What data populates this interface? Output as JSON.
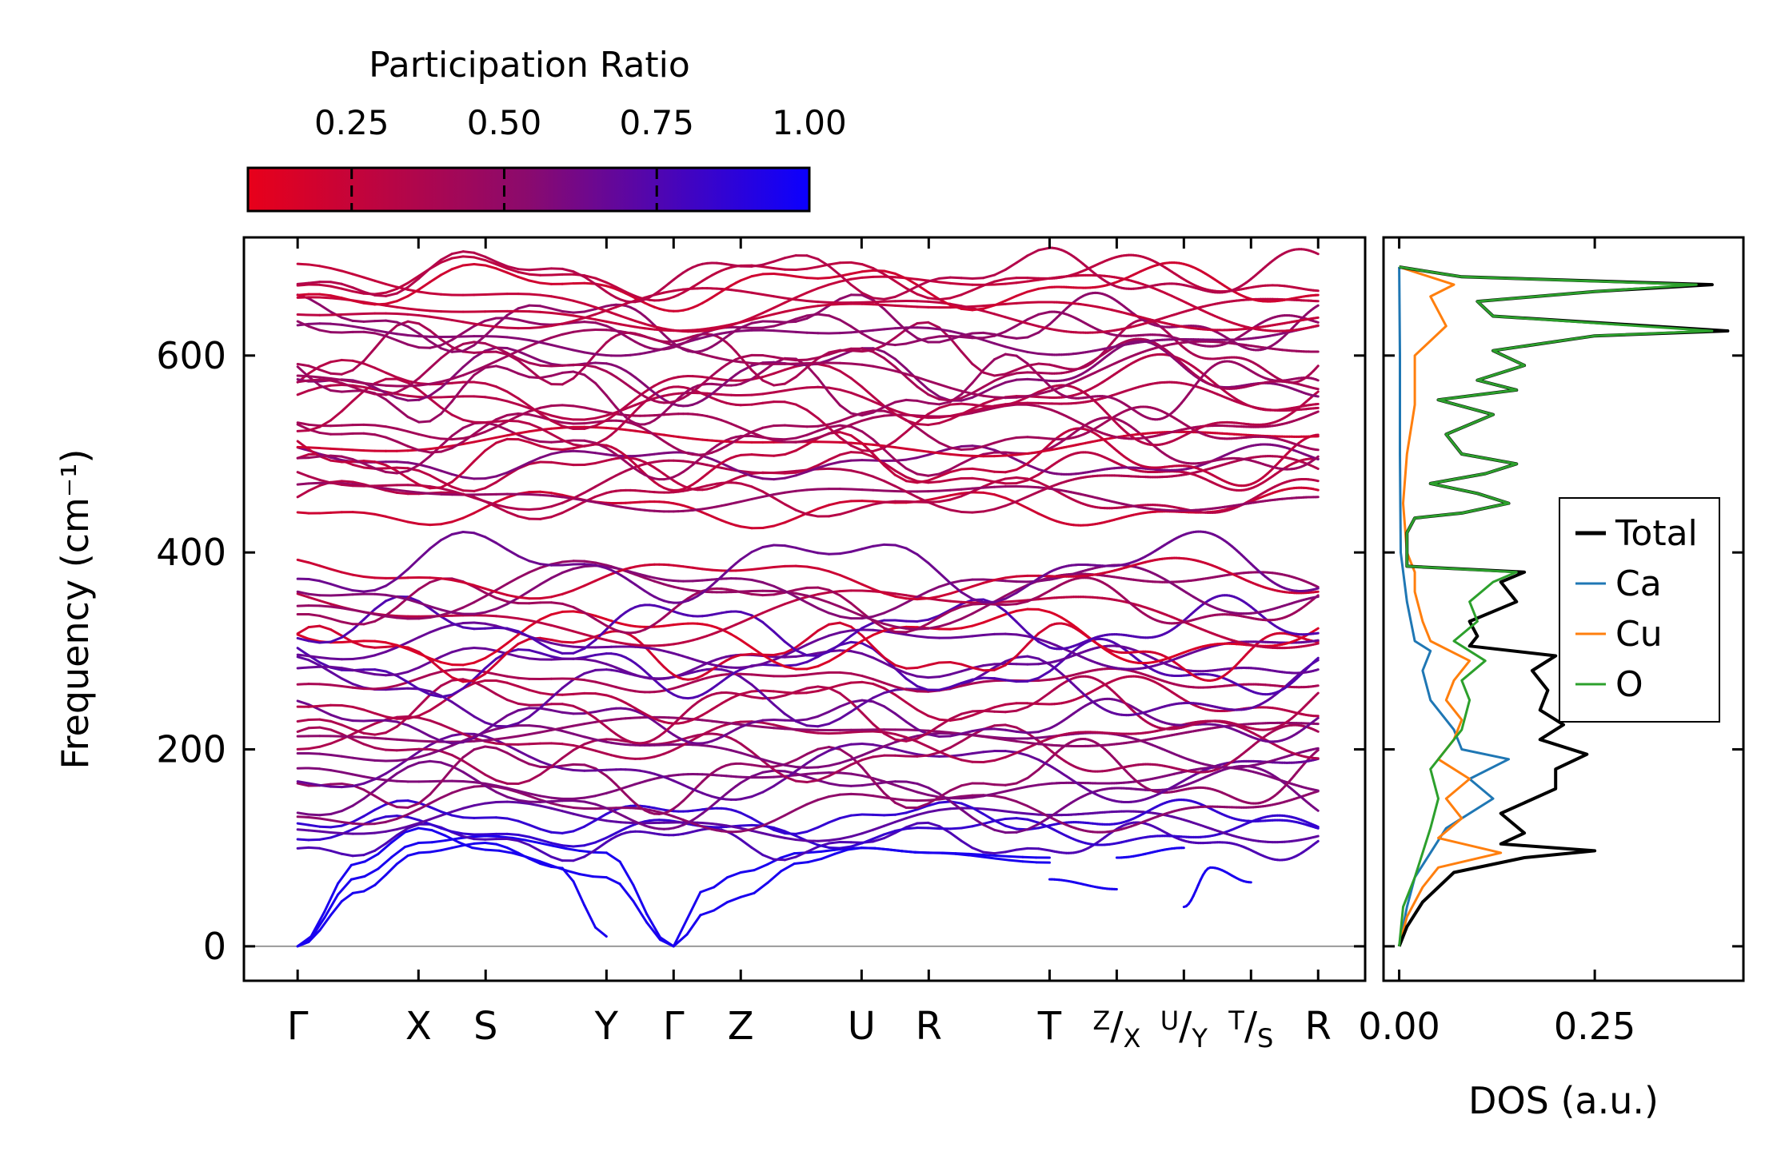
{
  "colorbar": {
    "title": "Participation Ratio",
    "ticks": [
      0.25,
      0.5,
      0.75,
      1.0
    ],
    "tick_labels": [
      "0.25",
      "0.50",
      "0.75",
      "1.00"
    ],
    "range": [
      0.08,
      1.0
    ],
    "color_low": "#e8001a",
    "color_mid": "#8a0a6e",
    "color_high": "#0b00ff"
  },
  "chart_data": [
    {
      "type": "line",
      "name": "phonon-dispersion",
      "ylabel": "Frequency (cm⁻¹)",
      "ylim": [
        -35,
        720
      ],
      "yticks": [
        0,
        200,
        400,
        600
      ],
      "ytick_labels": [
        "0",
        "200",
        "400",
        "600"
      ],
      "xlim": [
        -0.8,
        15.9
      ],
      "kpath": {
        "points": [
          0,
          1.8,
          2.8,
          4.6,
          5.6,
          6.6,
          8.4,
          9.4,
          11.2,
          12.2,
          13.2,
          14.2,
          15.2
        ],
        "labels": [
          "Γ",
          "X",
          "S",
          "Y",
          "Γ",
          "Z",
          "U",
          "R",
          "T",
          "Z/X",
          "U/Y",
          "T/S",
          "R"
        ],
        "segments": [
          [
            0,
            4.6
          ],
          [
            4.6,
            6.6
          ],
          [
            6.6,
            11.2
          ],
          [
            11.2,
            12.2
          ],
          [
            12.2,
            13.2
          ],
          [
            13.2,
            14.2
          ],
          [
            14.2,
            15.2
          ]
        ]
      },
      "zero_line": 0,
      "band_groups": {
        "acoustic": [
          {
            "x": [
              0,
              0.9,
              1.8,
              2.8,
              3.9,
              4.6
            ],
            "y": [
              0,
              55,
              95,
              105,
              80,
              10
            ]
          },
          {
            "x": [
              0,
              0.9,
              1.8,
              2.8,
              4.6,
              5.6
            ],
            "y": [
              0,
              70,
              105,
              112,
              95,
              0
            ]
          },
          {
            "x": [
              0,
              0.9,
              1.8,
              2.8,
              4.6,
              5.6
            ],
            "y": [
              0,
              85,
              120,
              98,
              70,
              0
            ]
          },
          {
            "x": [
              5.6,
              6.0,
              6.6,
              7.5,
              8.4,
              9.4,
              11.2
            ],
            "y": [
              0,
              55,
              75,
              95,
              100,
              95,
              90
            ]
          },
          {
            "x": [
              5.6,
              6.1,
              6.6,
              7.5,
              8.4,
              9.4,
              11.2
            ],
            "y": [
              0,
              35,
              50,
              85,
              100,
              95,
              85
            ]
          },
          {
            "x": [
              11.2,
              12.2
            ],
            "y": [
              68,
              58
            ]
          },
          {
            "x": [
              12.2,
              13.2
            ],
            "y": [
              90,
              100
            ]
          },
          {
            "x": [
              13.2,
              13.6,
              14.2
            ],
            "y": [
              40,
              80,
              65
            ]
          }
        ],
        "optical": [
          {
            "from": 100,
            "to": 390,
            "count": 30
          },
          {
            "from": 438,
            "to": 690,
            "count": 28
          }
        ],
        "participation_ratio_range": [
          0.08,
          1.0
        ]
      }
    },
    {
      "type": "line",
      "name": "phonon-dos",
      "xlabel": "DOS (a.u.)",
      "xlim": [
        -0.02,
        0.44
      ],
      "xticks": [
        0,
        0.25
      ],
      "xtick_labels": [
        "0.00",
        "0.25"
      ],
      "legend": "center-right",
      "series": [
        {
          "name": "Total",
          "color": "#000000",
          "freq": [
            0,
            20,
            45,
            75,
            90,
            97,
            104,
            115,
            135,
            160,
            180,
            195,
            210,
            225,
            240,
            260,
            280,
            295,
            305,
            315,
            330,
            350,
            370,
            380,
            386,
            390,
            400,
            420,
            435,
            440,
            450,
            460,
            470,
            480,
            490,
            500,
            520,
            540,
            555,
            565,
            575,
            590,
            605,
            620,
            625,
            640,
            655,
            665,
            672,
            680,
            690
          ],
          "dos": [
            0,
            0.01,
            0.03,
            0.07,
            0.16,
            0.25,
            0.13,
            0.16,
            0.13,
            0.2,
            0.2,
            0.24,
            0.18,
            0.21,
            0.18,
            0.19,
            0.17,
            0.2,
            0.09,
            0.1,
            0.09,
            0.15,
            0.13,
            0.16,
            0.01,
            0.01,
            0.01,
            0.01,
            0.02,
            0.08,
            0.14,
            0.1,
            0.04,
            0.11,
            0.15,
            0.08,
            0.06,
            0.12,
            0.05,
            0.15,
            0.1,
            0.16,
            0.12,
            0.25,
            0.42,
            0.12,
            0.1,
            0.25,
            0.4,
            0.08,
            0
          ]
        },
        {
          "name": "Ca",
          "color": "#1f77b4",
          "freq": [
            0,
            40,
            70,
            95,
            120,
            150,
            170,
            190,
            200,
            220,
            250,
            280,
            300,
            310,
            350,
            400,
            500,
            600,
            690
          ],
          "dos": [
            0,
            0.01,
            0.02,
            0.04,
            0.06,
            0.12,
            0.09,
            0.14,
            0.08,
            0.07,
            0.04,
            0.03,
            0.04,
            0.02,
            0.01,
            0.002,
            0.001,
            0.001,
            0
          ]
        },
        {
          "name": "Cu",
          "color": "#ff7f0e",
          "freq": [
            0,
            30,
            60,
            80,
            95,
            110,
            130,
            150,
            170,
            190,
            210,
            230,
            250,
            270,
            290,
            310,
            330,
            360,
            380,
            400,
            450,
            500,
            550,
            600,
            630,
            660,
            672,
            690
          ],
          "dos": [
            0,
            0.01,
            0.03,
            0.05,
            0.13,
            0.05,
            0.08,
            0.06,
            0.09,
            0.05,
            0.07,
            0.08,
            0.06,
            0.07,
            0.09,
            0.04,
            0.03,
            0.02,
            0.02,
            0.01,
            0.005,
            0.01,
            0.02,
            0.02,
            0.06,
            0.04,
            0.07,
            0
          ]
        },
        {
          "name": "O",
          "color": "#2ca02c",
          "freq": [
            0,
            40,
            70,
            95,
            120,
            150,
            180,
            200,
            220,
            250,
            270,
            290,
            310,
            330,
            350,
            370,
            380,
            386,
            390,
            400,
            420,
            435,
            440,
            450,
            460,
            470,
            480,
            490,
            500,
            520,
            540,
            555,
            565,
            575,
            590,
            605,
            620,
            625,
            640,
            655,
            665,
            672,
            680,
            690
          ],
          "dos": [
            0,
            0.005,
            0.02,
            0.03,
            0.04,
            0.05,
            0.04,
            0.06,
            0.08,
            0.09,
            0.08,
            0.11,
            0.07,
            0.1,
            0.09,
            0.12,
            0.15,
            0.01,
            0.01,
            0.01,
            0.01,
            0.02,
            0.08,
            0.14,
            0.1,
            0.04,
            0.11,
            0.15,
            0.08,
            0.06,
            0.12,
            0.05,
            0.15,
            0.1,
            0.16,
            0.12,
            0.25,
            0.4,
            0.12,
            0.1,
            0.25,
            0.38,
            0.08,
            0
          ]
        }
      ]
    }
  ]
}
